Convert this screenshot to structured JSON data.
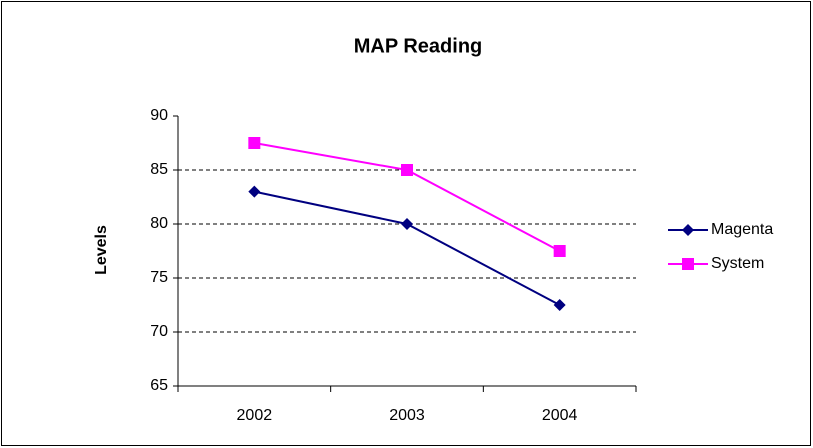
{
  "chart_data": {
    "type": "line",
    "title": "MAP Reading",
    "y_label": "Levels",
    "categories": [
      "2002",
      "2003",
      "2004"
    ],
    "series": [
      {
        "name": "Magenta",
        "color": "#000080",
        "marker": "diamond",
        "values": [
          83,
          80,
          72.5
        ]
      },
      {
        "name": "System",
        "color": "#ff00ff",
        "marker": "square",
        "values": [
          87.5,
          85,
          77.5
        ]
      }
    ],
    "ylim": [
      65,
      90
    ],
    "yticks": [
      65,
      70,
      75,
      80,
      85,
      90
    ],
    "grid": true,
    "legend": "right"
  }
}
